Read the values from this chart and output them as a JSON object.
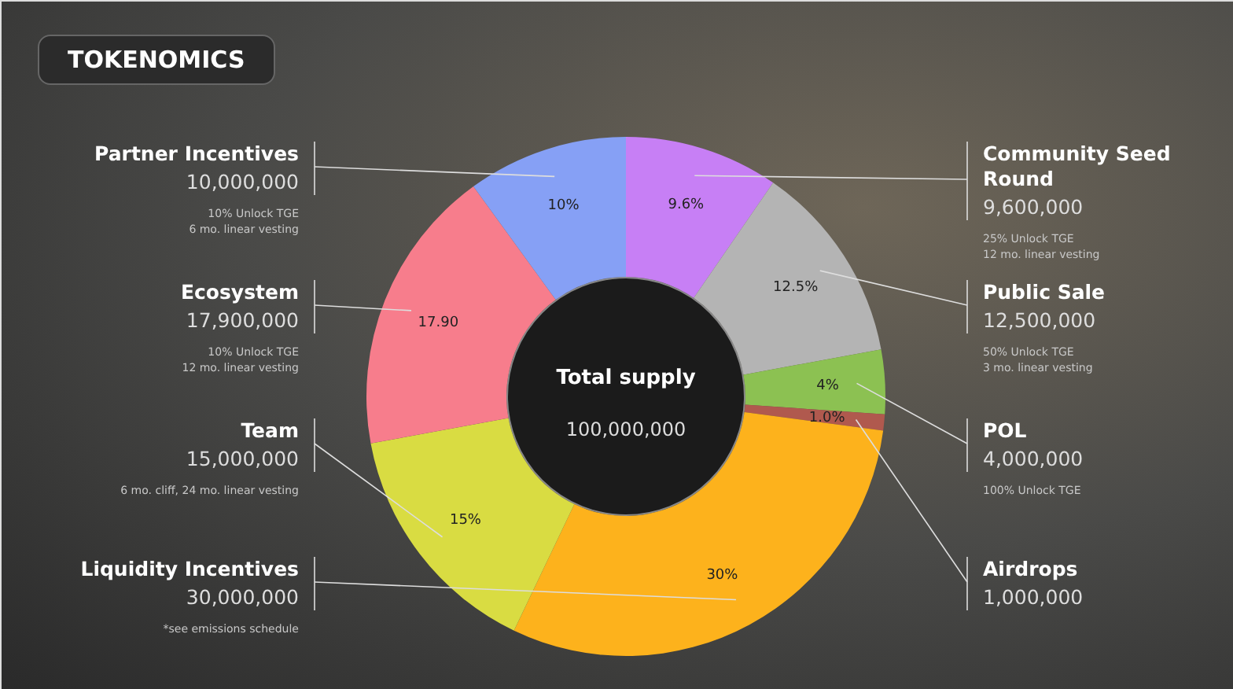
{
  "chart_data": {
    "type": "donut",
    "title": "TOKENOMICS",
    "categories": [
      "Community Seed Round",
      "Public Sale",
      "POL",
      "Airdrops",
      "Liquidity Incentives",
      "Team",
      "Ecosystem",
      "Partner Incentives"
    ],
    "values": [
      9.6,
      12.5,
      4,
      1,
      30,
      15,
      17.9,
      10
    ],
    "value_labels": [
      "9.6%",
      "12.5%",
      "4%",
      "1.0%",
      "30%",
      "15%",
      "17.90",
      "10%"
    ],
    "colors": [
      "#c77ff5",
      "#b4b4b4",
      "#8cc152",
      "#b0594e",
      "#fdb21c",
      "#d9dc42",
      "#f77d8c",
      "#86a0f5"
    ],
    "annotations": [
      {
        "text": "9,600,000",
        "x": "Community Seed Round"
      },
      {
        "text": "25% Unlock TGE\n12 mo. linear vesting",
        "x": "Community Seed Round"
      },
      {
        "text": "12,500,000",
        "x": "Public Sale"
      },
      {
        "text": "50% Unlock TGE\n3 mo. linear vesting",
        "x": "Public Sale"
      },
      {
        "text": "4,000,000",
        "x": "POL"
      },
      {
        "text": "100% Unlock TGE",
        "x": "POL"
      },
      {
        "text": "1,000,000",
        "x": "Airdrops"
      },
      {
        "text": "30,000,000",
        "x": "Liquidity Incentives"
      },
      {
        "text": "*see emissions schedule",
        "x": "Liquidity Incentives"
      },
      {
        "text": "15,000,000",
        "x": "Team"
      },
      {
        "text": "6 mo. cliff, 24 mo. linear vesting",
        "x": "Team"
      },
      {
        "text": "17,900,000",
        "x": "Ecosystem"
      },
      {
        "text": "10% Unlock TGE\n12 mo. linear vesting",
        "x": "Ecosystem"
      },
      {
        "text": "10,000,000",
        "x": "Partner Incentives"
      },
      {
        "text": "10% Unlock TGE\n6 mo. linear vesting",
        "x": "Partner Incentives"
      },
      "Total supply",
      "100,000,000"
    ]
  }
}
